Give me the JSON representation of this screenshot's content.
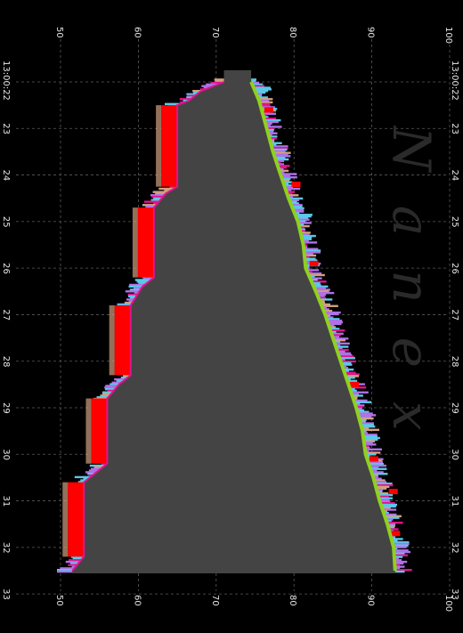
{
  "chart_data": {
    "type": "area",
    "title": "",
    "xlabel": "",
    "ylabel": "",
    "orientation": "rotated-90",
    "watermark": "Nanex",
    "price_axis": {
      "range": [
        50,
        100
      ],
      "ticks": [
        "50",
        "60",
        "70",
        "80",
        "90",
        "100"
      ]
    },
    "time_axis": {
      "ticks": [
        "13:00:22",
        "23",
        "24",
        "25",
        "26",
        "27",
        "28",
        "29",
        "30",
        "31",
        "32",
        "33"
      ]
    },
    "grid": true,
    "colors": {
      "background": "#000000",
      "spread_fill": "#444444",
      "bid_edge": "#e0148c",
      "ask_edge": "#8fd11e",
      "quote_red": "#ff0000",
      "quote_cyan": "#5bc8e8",
      "quote_violet": "#b070e8",
      "quote_tan": "#d2a080"
    },
    "series": [
      {
        "name": "",
        "role": "lower-bound",
        "points": [
          [
            22.5,
            71.0
          ],
          [
            22.7,
            68.0
          ],
          [
            22.9,
            66.5
          ],
          [
            23.0,
            65.0
          ],
          [
            24.0,
            65.0
          ],
          [
            24.75,
            65.0
          ],
          [
            24.9,
            63.5
          ],
          [
            25.2,
            62.0
          ],
          [
            26.0,
            62.0
          ],
          [
            26.7,
            62.0
          ],
          [
            26.9,
            60.5
          ],
          [
            27.3,
            59.0
          ],
          [
            28.0,
            59.0
          ],
          [
            28.8,
            59.0
          ],
          [
            29.0,
            57.5
          ],
          [
            29.3,
            56.0
          ],
          [
            30.0,
            56.0
          ],
          [
            30.7,
            56.0
          ],
          [
            30.9,
            54.5
          ],
          [
            31.1,
            53.0
          ],
          [
            32.0,
            53.0
          ],
          [
            32.7,
            53.0
          ],
          [
            32.9,
            52.0
          ],
          [
            33.0,
            51.5
          ]
        ]
      },
      {
        "name": "",
        "role": "upper-bound",
        "points": [
          [
            22.5,
            74.5
          ],
          [
            22.9,
            75.5
          ],
          [
            23.5,
            76.5
          ],
          [
            24.0,
            77.3
          ],
          [
            24.5,
            78.3
          ],
          [
            25.0,
            79.3
          ],
          [
            25.5,
            80.5
          ],
          [
            26.0,
            81.2
          ],
          [
            26.5,
            81.5
          ],
          [
            27.0,
            82.8
          ],
          [
            27.5,
            84.0
          ],
          [
            28.0,
            85.0
          ],
          [
            28.5,
            86.0
          ],
          [
            29.0,
            87.0
          ],
          [
            29.5,
            88.0
          ],
          [
            30.0,
            88.8
          ],
          [
            30.5,
            89.2
          ],
          [
            31.0,
            90.2
          ],
          [
            31.5,
            91.0
          ],
          [
            32.0,
            92.0
          ],
          [
            32.5,
            92.8
          ],
          [
            33.0,
            93.0
          ]
        ]
      }
    ]
  }
}
